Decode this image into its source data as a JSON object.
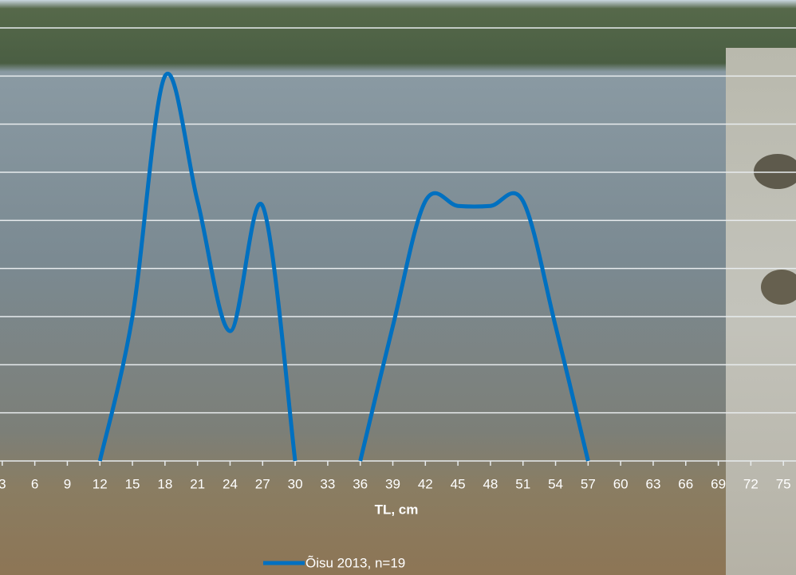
{
  "chart_data": {
    "type": "line",
    "x_label": "TL, cm",
    "x": [
      12,
      15,
      18,
      21,
      24,
      27,
      30,
      33,
      36,
      39,
      42,
      45,
      48,
      51,
      54,
      57
    ],
    "series": [
      {
        "name": "Õisu 2013, n=19",
        "color": "#0070c0",
        "values": [
          0,
          3,
          8,
          5.4,
          2.7,
          5.3,
          0,
          null,
          0,
          2.8,
          5.4,
          5.3,
          5.3,
          5.4,
          2.8,
          0
        ]
      }
    ],
    "xlim": [
      0,
      78
    ],
    "xticks": [
      3,
      6,
      9,
      12,
      15,
      18,
      21,
      24,
      27,
      30,
      33,
      36,
      39,
      42,
      45,
      48,
      51,
      54,
      57,
      60,
      63,
      66,
      69,
      72,
      75
    ],
    "ylim": [
      0,
      9
    ],
    "yticks": [
      0,
      1,
      2,
      3,
      4,
      5,
      6,
      7,
      8,
      9
    ],
    "grid": true
  }
}
